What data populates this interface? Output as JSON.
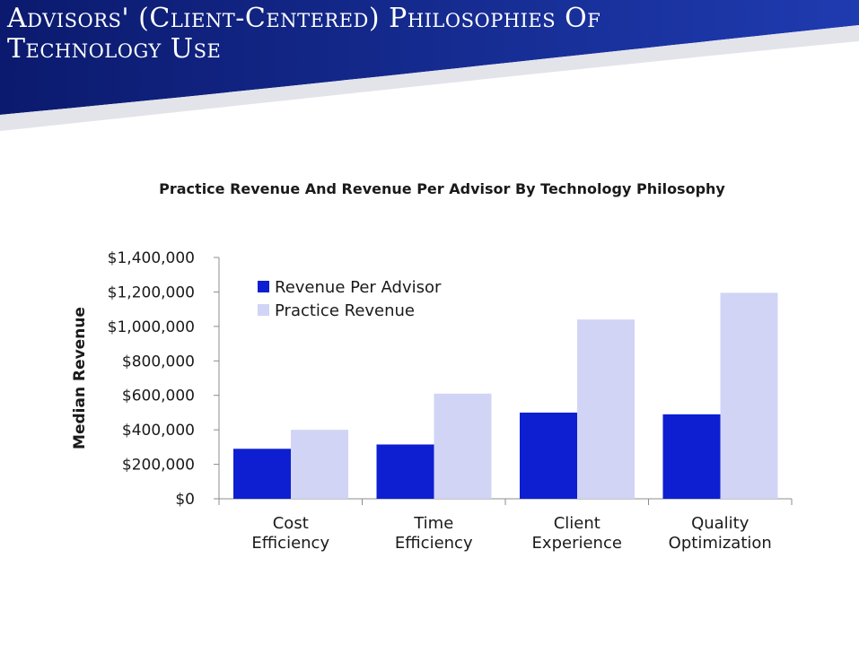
{
  "slide": {
    "title_line1": "Advisors' (Client-Centered) Philosophies Of",
    "title_line2": "Technology Use",
    "colors": {
      "banner_dark": "#0b1a6e",
      "banner_light": "#1f3bb0",
      "swoosh": "#e3e3ea"
    }
  },
  "chart_data": {
    "type": "bar",
    "title": "Practice Revenue And Revenue Per Advisor By Technology Philosophy",
    "xlabel": "",
    "ylabel": "Median Revenue",
    "ylim": [
      0,
      1400000
    ],
    "yticks": [
      0,
      200000,
      400000,
      600000,
      800000,
      1000000,
      1200000,
      1400000
    ],
    "ytick_labels": [
      "$0",
      "$200,000",
      "$400,000",
      "$600,000",
      "$800,000",
      "$1,000,000",
      "$1,200,000",
      "$1,400,000"
    ],
    "categories": [
      [
        "Cost",
        "Efficiency"
      ],
      [
        "Time",
        "Efficiency"
      ],
      [
        "Client",
        "Experience"
      ],
      [
        "Quality",
        "Optimization"
      ]
    ],
    "series": [
      {
        "name": "Revenue Per Advisor",
        "color": "#0d1fd1",
        "values": [
          290000,
          315000,
          500000,
          490000
        ]
      },
      {
        "name": "Practice Revenue",
        "color": "#d1d4f5",
        "values": [
          400000,
          610000,
          1040000,
          1195000
        ]
      }
    ],
    "legend": "top-left",
    "grid": false
  }
}
